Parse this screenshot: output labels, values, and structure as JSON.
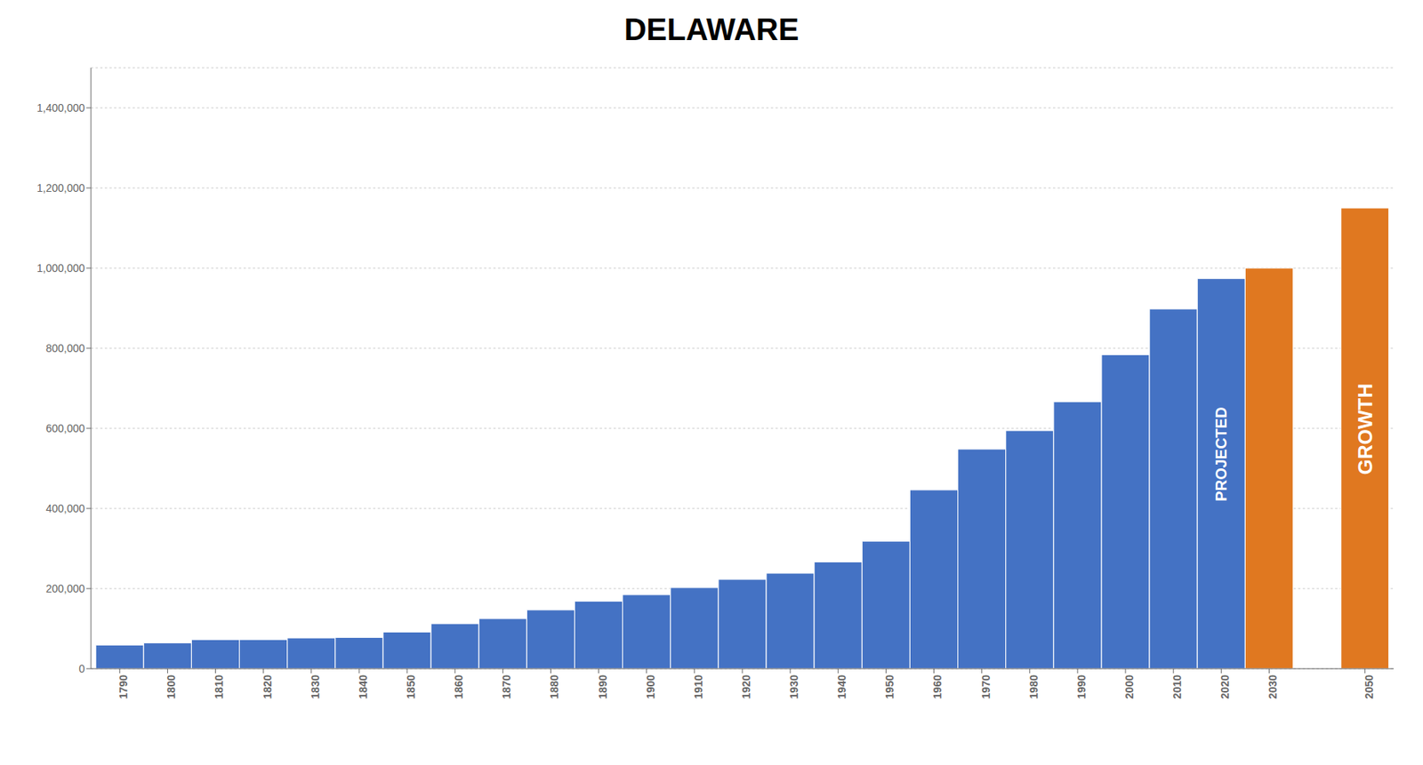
{
  "chart_data": {
    "type": "bar",
    "title": "DELAWARE",
    "x": [
      1790,
      1800,
      1810,
      1820,
      1830,
      1840,
      1850,
      1860,
      1870,
      1880,
      1890,
      1900,
      1910,
      1920,
      1930,
      1940,
      1950,
      1960,
      1970,
      1980,
      1990,
      2000,
      2010,
      2020,
      2030,
      2050
    ],
    "values": [
      59096,
      64273,
      72674,
      72749,
      76748,
      78085,
      91532,
      112216,
      125015,
      146608,
      168493,
      184735,
      202322,
      223003,
      238380,
      266505,
      318085,
      446292,
      548104,
      594338,
      666168,
      783600,
      897934,
      973764,
      1000000,
      1150000
    ],
    "colors": [
      "#4472c4",
      "#4472c4",
      "#4472c4",
      "#4472c4",
      "#4472c4",
      "#4472c4",
      "#4472c4",
      "#4472c4",
      "#4472c4",
      "#4472c4",
      "#4472c4",
      "#4472c4",
      "#4472c4",
      "#4472c4",
      "#4472c4",
      "#4472c4",
      "#4472c4",
      "#4472c4",
      "#4472c4",
      "#4472c4",
      "#4472c4",
      "#4472c4",
      "#4472c4",
      "#4472c4",
      "#e07820",
      "#e07820"
    ],
    "xlim": [
      1784,
      2056
    ],
    "xticks": [
      1790,
      1800,
      1810,
      1820,
      1830,
      1840,
      1850,
      1860,
      1870,
      1880,
      1890,
      1900,
      1910,
      1920,
      1930,
      1940,
      1950,
      1960,
      1970,
      1980,
      1990,
      2000,
      2010,
      2020,
      2030,
      2050
    ],
    "ylim": [
      0,
      1500000
    ],
    "yticks": [
      0,
      {
        "value": 200000,
        "label": "200,000"
      },
      {
        "value": 400000,
        "label": "400,000"
      },
      {
        "value": 600000,
        "label": "600,000"
      },
      {
        "value": 800000,
        "label": "800,000"
      },
      {
        "value": 1000000,
        "label": "1,000,000"
      },
      {
        "value": 1200000,
        "label": "1,200,000"
      },
      {
        "value": 1400000,
        "label": "1,400,000"
      }
    ],
    "grid": true,
    "annotations": [
      {
        "text": "PROJECTED",
        "x": 2020
      },
      {
        "text": "GROWTH",
        "x": 2050
      }
    ]
  }
}
